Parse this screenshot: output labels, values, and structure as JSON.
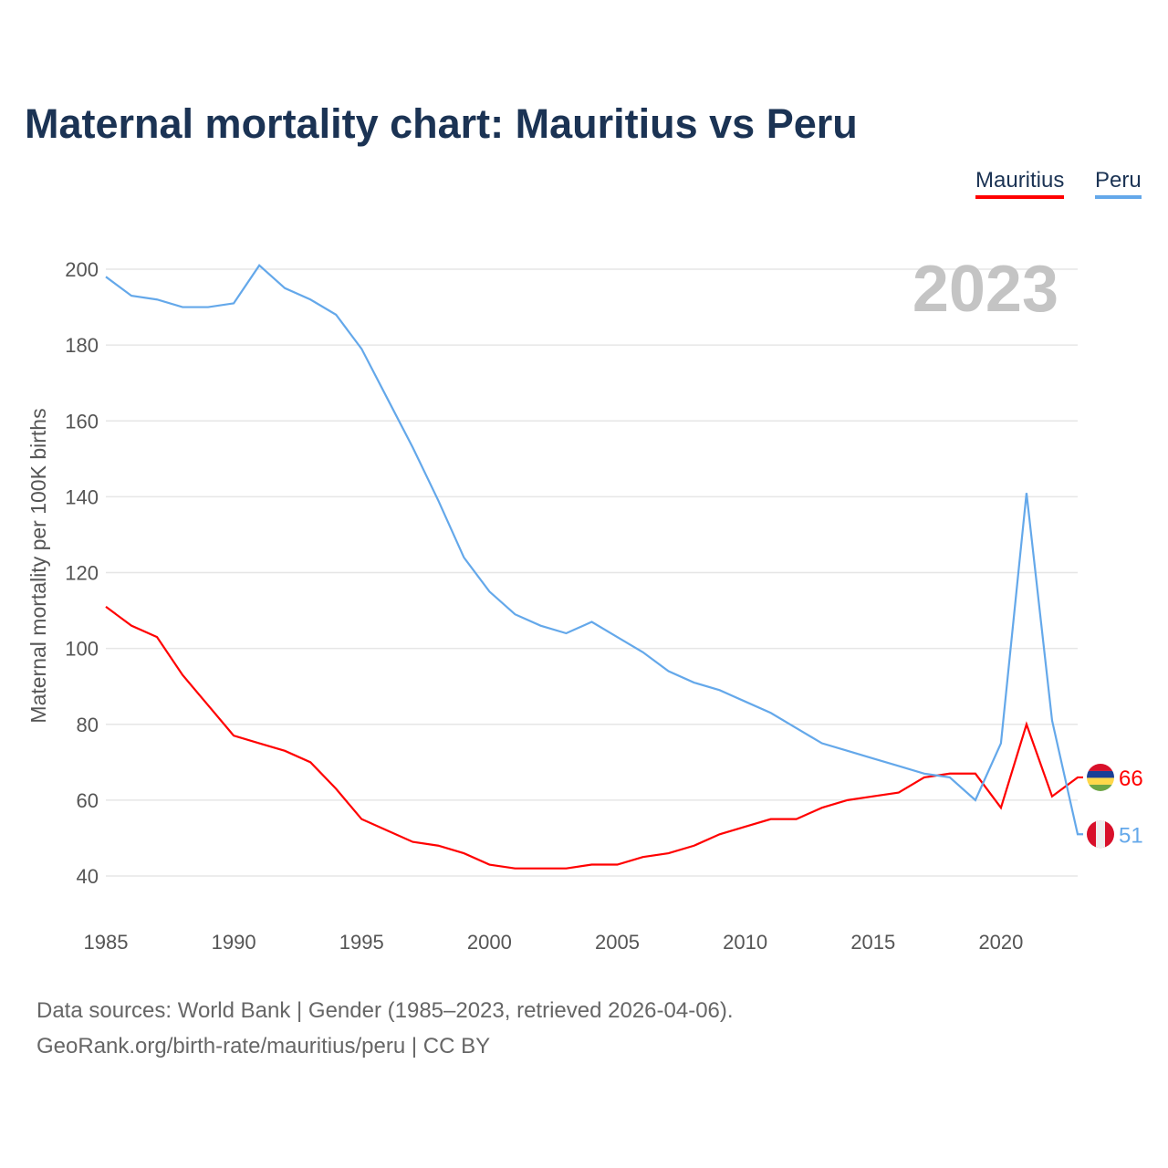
{
  "title": "Maternal mortality chart: Mauritius vs Peru",
  "footer": {
    "line1": "Data sources: World Bank | Gender (1985–2023, retrieved 2026-04-06).",
    "line2": "GeoRank.org/birth-rate/mauritius/peru | CC BY"
  },
  "chart_data": {
    "type": "line",
    "title": "Maternal mortality chart: Mauritius vs Peru",
    "ylabel": "Maternal mortality per 100K births",
    "xlabel": "",
    "year_label": "2023",
    "xlim": [
      1985,
      2023
    ],
    "ylim": [
      30,
      200
    ],
    "yticks": [
      40,
      60,
      80,
      100,
      120,
      140,
      160,
      180,
      200
    ],
    "xticks": [
      1985,
      1990,
      1995,
      2000,
      2005,
      2010,
      2015,
      2020
    ],
    "legend": "top-right",
    "x": [
      1985,
      1986,
      1987,
      1988,
      1989,
      1990,
      1991,
      1992,
      1993,
      1994,
      1995,
      1996,
      1997,
      1998,
      1999,
      2000,
      2001,
      2002,
      2003,
      2004,
      2005,
      2006,
      2007,
      2008,
      2009,
      2010,
      2011,
      2012,
      2013,
      2014,
      2015,
      2016,
      2017,
      2018,
      2019,
      2020,
      2021,
      2022,
      2023
    ],
    "series": [
      {
        "name": "Mauritius",
        "color": "#ff0000",
        "end_label": "66",
        "values": [
          111,
          106,
          103,
          93,
          85,
          77,
          75,
          73,
          70,
          63,
          55,
          52,
          49,
          48,
          46,
          43,
          42,
          42,
          42,
          43,
          43,
          45,
          46,
          48,
          51,
          53,
          55,
          55,
          58,
          60,
          61,
          62,
          66,
          67,
          67,
          58,
          80,
          61,
          66
        ]
      },
      {
        "name": "Peru",
        "color": "#64a8ea",
        "end_label": "51",
        "values": [
          198,
          193,
          192,
          190,
          190,
          191,
          201,
          195,
          192,
          188,
          179,
          166,
          153,
          139,
          124,
          115,
          109,
          106,
          104,
          107,
          103,
          99,
          94,
          91,
          89,
          86,
          83,
          79,
          75,
          73,
          71,
          69,
          67,
          66,
          60,
          75,
          141,
          81,
          51
        ]
      }
    ]
  }
}
